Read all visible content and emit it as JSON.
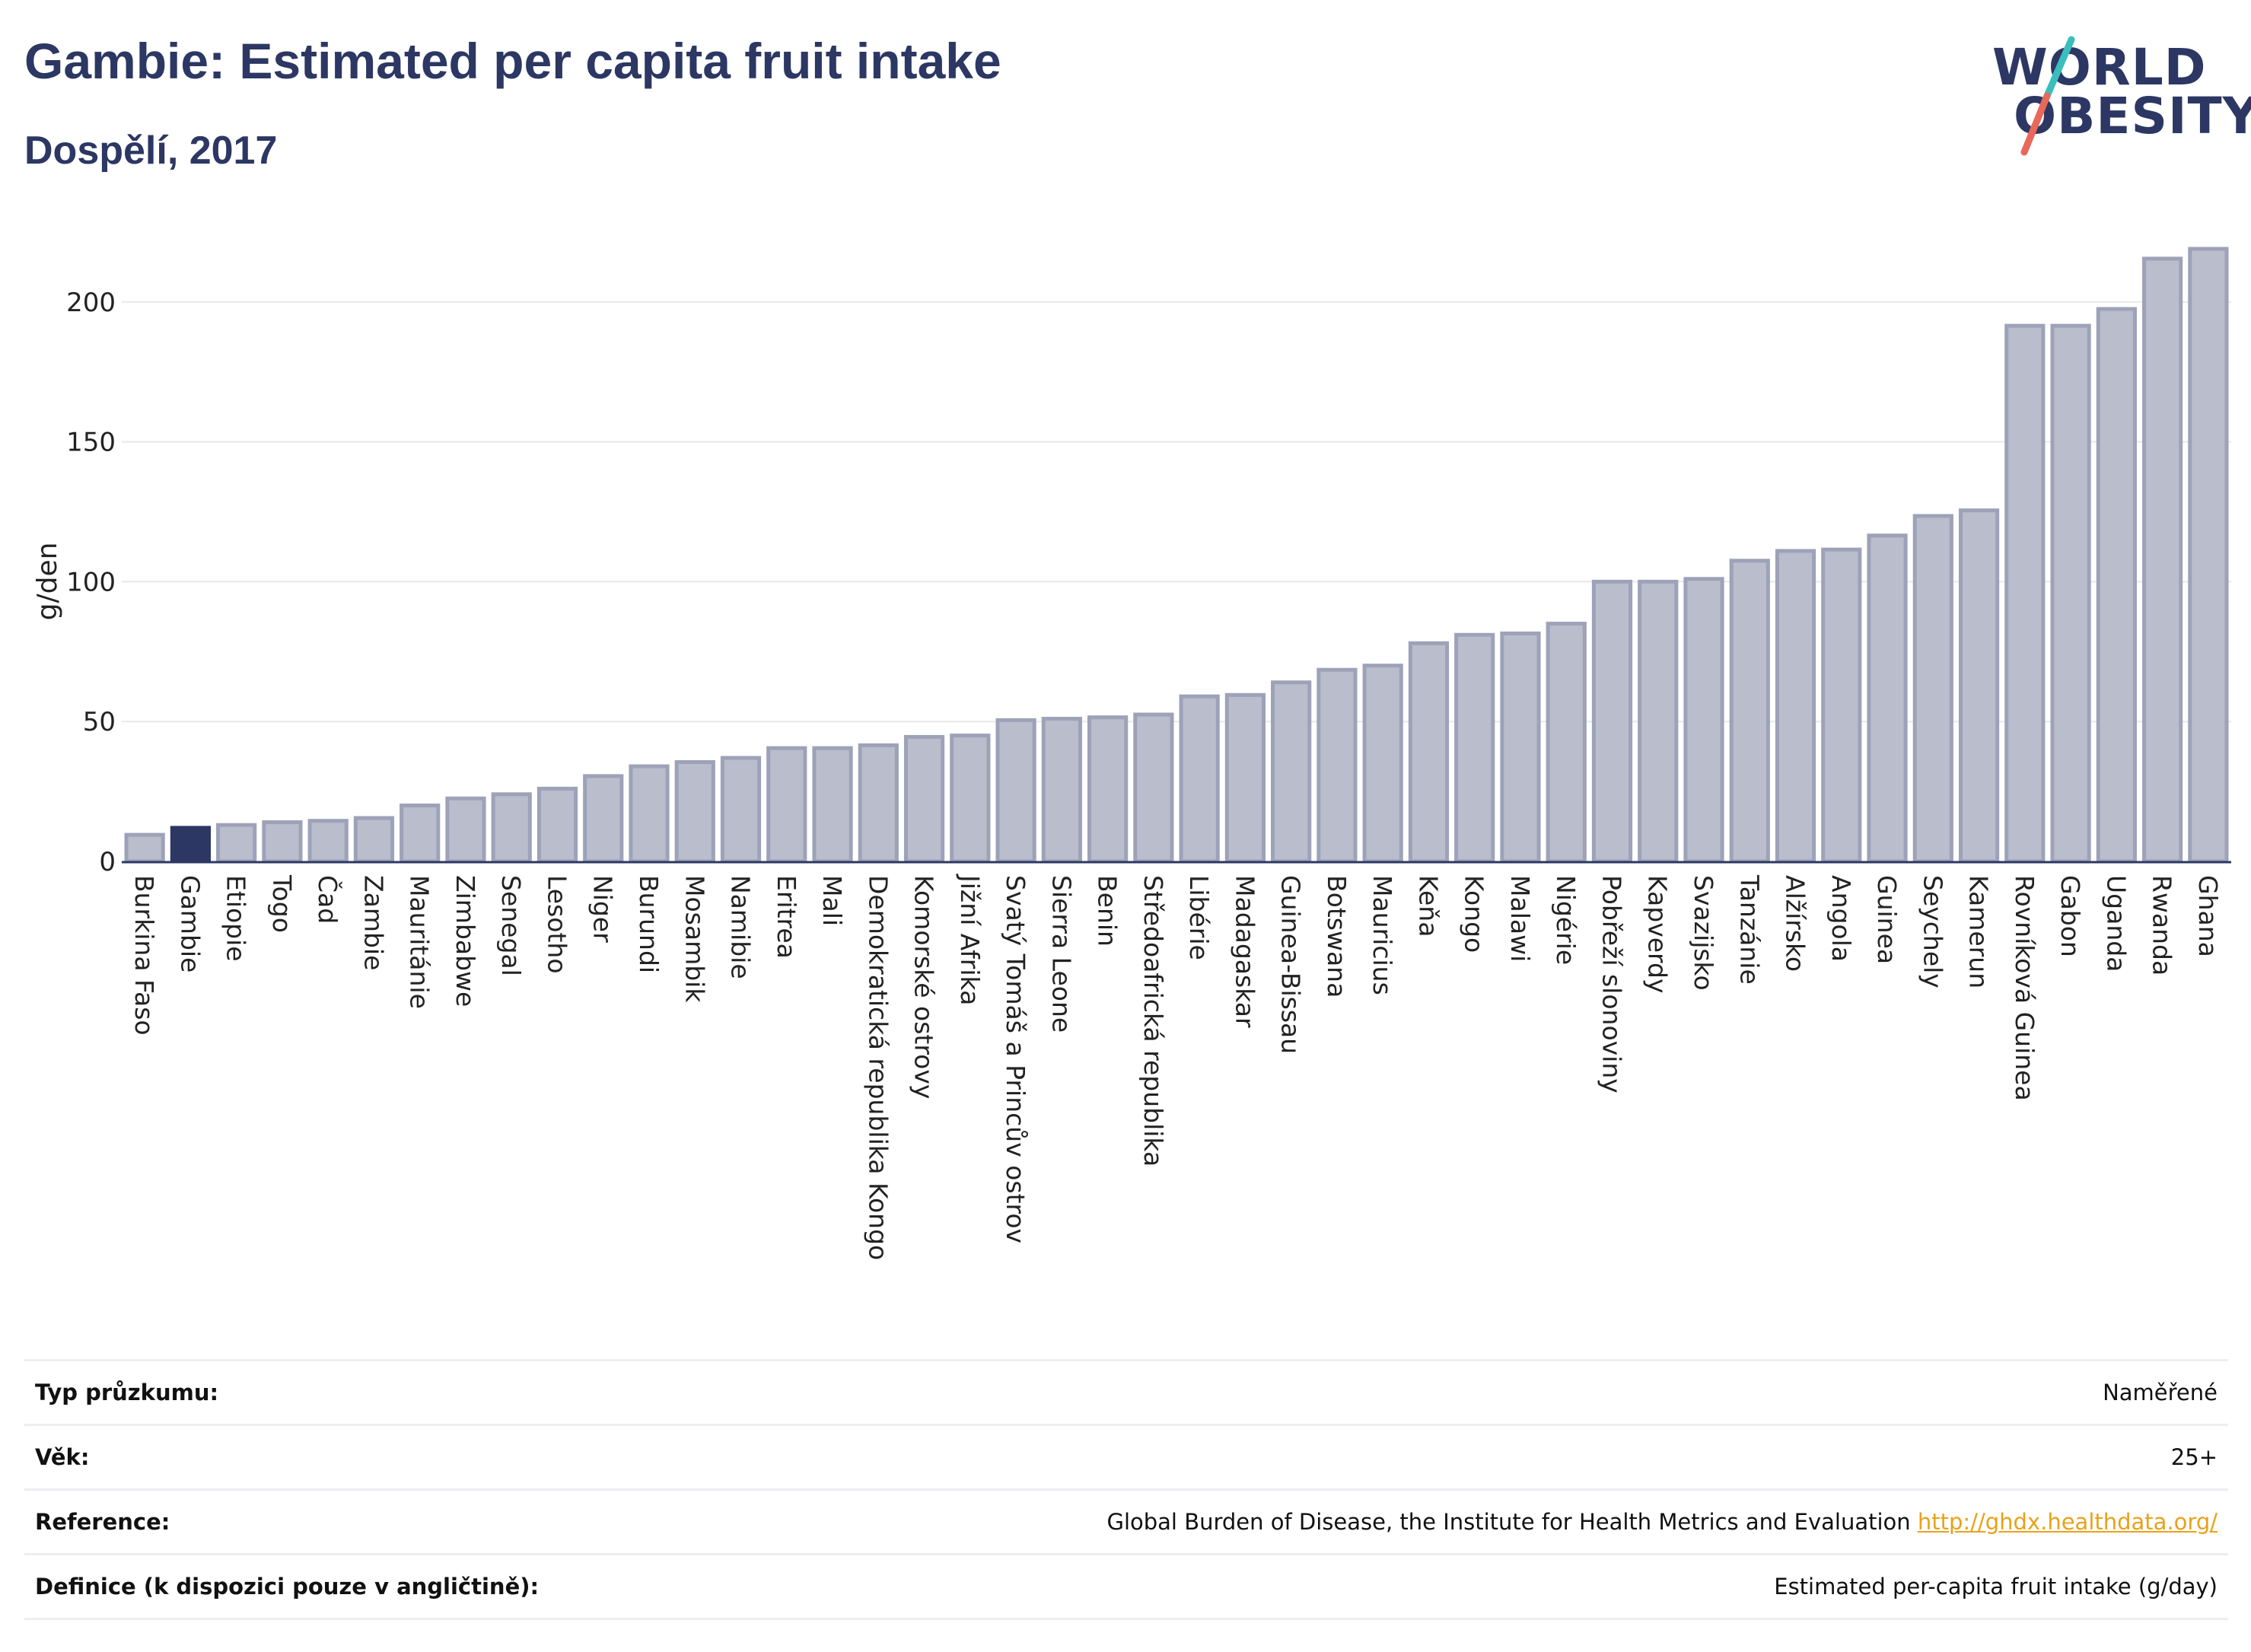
{
  "header": {
    "title": "Gambie: Estimated per capita fruit intake",
    "subtitle": "Dospělí, 2017"
  },
  "logo": {
    "line1": "WORLD",
    "line2": "OBESITY",
    "text": "WORLD OBESITY",
    "slash_colors": [
      "#3bbdbd",
      "#e8685a"
    ]
  },
  "colors": {
    "bar": "#b9bdcc",
    "bar_border": "#9da2b8",
    "highlight": "#2c3763",
    "grid": "#e6e8ec",
    "text": "#2c3763"
  },
  "chart_data": {
    "type": "bar",
    "ylabel": "g/den",
    "xlabel": "",
    "ylim": [
      0,
      222
    ],
    "yticks": [
      0,
      50,
      100,
      150,
      200
    ],
    "grid": true,
    "highlight": "Gambie",
    "categories": [
      "Burkina Faso",
      "Gambie",
      "Etiopie",
      "Togo",
      "Čad",
      "Zambie",
      "Mauritánie",
      "Zimbabwe",
      "Senegal",
      "Lesotho",
      "Niger",
      "Burundi",
      "Mosambik",
      "Namibie",
      "Eritrea",
      "Mali",
      "Demokratická republika Kongo",
      "Komorské ostrovy",
      "Jižní Afrika",
      "Svatý Tomáš a Princův ostrov",
      "Sierra Leone",
      "Benin",
      "Středoafrická republika",
      "Libérie",
      "Madagaskar",
      "Guinea-Bissau",
      "Botswana",
      "Mauricius",
      "Keňa",
      "Kongo",
      "Malawi",
      "Nigérie",
      "Pobřeží slonoviny",
      "Kapverdy",
      "Svazijsko",
      "Tanzánie",
      "Alžírsko",
      "Angola",
      "Guinea",
      "Seychely",
      "Kamerun",
      "Rovníková Guinea",
      "Gabon",
      "Uganda",
      "Rwanda",
      "Ghana"
    ],
    "values": [
      9.5,
      12,
      13,
      14,
      14.5,
      15.5,
      20,
      22.5,
      24,
      26,
      30.5,
      34,
      35.5,
      37,
      40.5,
      40.5,
      41.5,
      44.5,
      45,
      50.5,
      51,
      51.5,
      52.5,
      59,
      59.5,
      64,
      68.5,
      70,
      78,
      81,
      81.5,
      85,
      100,
      100,
      101,
      107.5,
      111,
      111.5,
      116.5,
      123.5,
      125.5,
      191.5,
      191.5,
      197.5,
      215.5,
      219
    ]
  },
  "info_table": [
    {
      "label": "Typ průzkumu:",
      "value": "Naměřené"
    },
    {
      "label": "Věk:",
      "value": "25+"
    },
    {
      "label": "Reference:",
      "value": "Global Burden of Disease, the Institute for Health Metrics and Evaluation",
      "link": "http://ghdx.healthdata.org/"
    },
    {
      "label": "Definice (k dispozici pouze v angličtině):",
      "value": "Estimated per-capita fruit intake (g/day)"
    }
  ]
}
